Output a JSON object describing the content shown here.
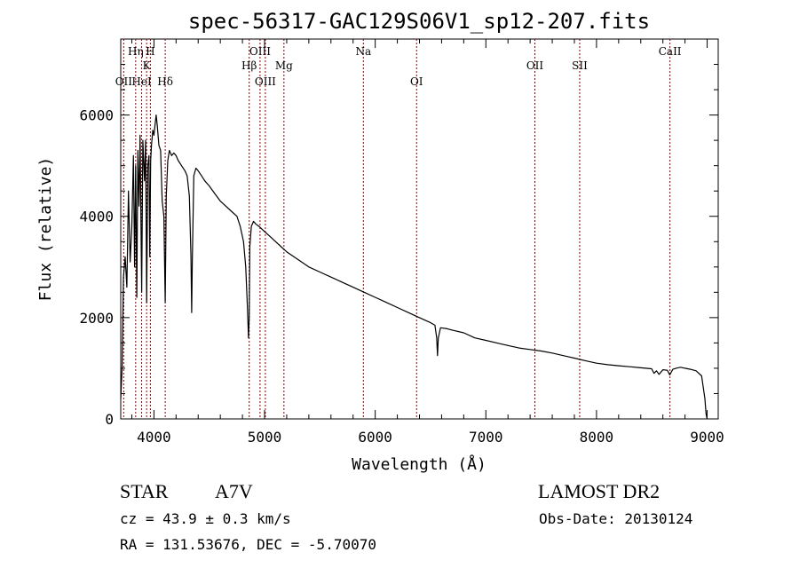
{
  "chart_data": {
    "type": "line",
    "title": "spec-56317-GAC129S06V1_sp12-207.fits",
    "xlabel": "Wavelength (Å)",
    "ylabel": "Flux (relative)",
    "xlim": [
      3700,
      9100
    ],
    "ylim": [
      0,
      7500
    ],
    "x_ticks": [
      4000,
      5000,
      6000,
      7000,
      8000,
      9000
    ],
    "x_tick_labels": [
      "4000",
      "5000",
      "6000",
      "7000",
      "8000",
      "9000"
    ],
    "y_ticks": [
      0,
      2000,
      4000,
      6000
    ],
    "y_tick_labels": [
      "0",
      "2000",
      "4000",
      "6000"
    ],
    "grid": false,
    "legend": "none",
    "line_color": "#000000",
    "marker_color": "#8b0000",
    "series": [
      {
        "x": [
          3700,
          3712,
          3725,
          3740,
          3755,
          3770,
          3785,
          3800,
          3815,
          3825,
          3835,
          3845,
          3855,
          3865,
          3875,
          3889,
          3900,
          3915,
          3925,
          3934,
          3945,
          3955,
          3962,
          3970,
          3978,
          3990,
          4000,
          4010,
          4020,
          4030,
          4045,
          4060,
          4075,
          4090,
          4102,
          4112,
          4125,
          4140,
          4160,
          4180,
          4200,
          4220,
          4250,
          4280,
          4300,
          4320,
          4335,
          4341,
          4347,
          4360,
          4380,
          4400,
          4430,
          4460,
          4500,
          4550,
          4600,
          4650,
          4700,
          4750,
          4780,
          4810,
          4830,
          4845,
          4855,
          4861,
          4867,
          4880,
          4900,
          4920,
          4950,
          5000,
          5050,
          5100,
          5150,
          5200,
          5300,
          5400,
          5500,
          5600,
          5700,
          5800,
          5900,
          6000,
          6100,
          6200,
          6300,
          6400,
          6500,
          6540,
          6556,
          6563,
          6570,
          6590,
          6650,
          6700,
          6800,
          6900,
          7000,
          7100,
          7200,
          7300,
          7400,
          7500,
          7600,
          7700,
          7800,
          7900,
          8000,
          8100,
          8200,
          8300,
          8400,
          8498,
          8520,
          8542,
          8565,
          8600,
          8640,
          8662,
          8690,
          8720,
          8760,
          8800,
          8850,
          8900,
          8950,
          8980,
          8990,
          9000
        ],
        "y": [
          400,
          1000,
          2800,
          3200,
          2600,
          4500,
          3100,
          3800,
          5200,
          3000,
          5000,
          2400,
          5300,
          4200,
          5600,
          2500,
          5500,
          4700,
          5500,
          2300,
          5000,
          5200,
          3200,
          5100,
          5400,
          5700,
          5600,
          5800,
          6000,
          5800,
          5400,
          5300,
          4300,
          4000,
          2300,
          4400,
          5100,
          5300,
          5200,
          5250,
          5200,
          5100,
          5000,
          4900,
          4800,
          4400,
          3200,
          2100,
          3100,
          4800,
          4950,
          4900,
          4800,
          4700,
          4600,
          4450,
          4300,
          4200,
          4100,
          4000,
          3800,
          3500,
          3000,
          2200,
          1600,
          2000,
          3400,
          3800,
          3900,
          3850,
          3800,
          3700,
          3600,
          3500,
          3400,
          3300,
          3150,
          3000,
          2900,
          2800,
          2700,
          2600,
          2500,
          2400,
          2300,
          2200,
          2100,
          2000,
          1900,
          1850,
          1600,
          1250,
          1600,
          1800,
          1780,
          1750,
          1700,
          1600,
          1550,
          1500,
          1450,
          1400,
          1370,
          1340,
          1300,
          1250,
          1200,
          1150,
          1100,
          1070,
          1050,
          1030,
          1010,
          990,
          900,
          950,
          880,
          970,
          960,
          870,
          980,
          1000,
          1020,
          1000,
          980,
          950,
          850,
          400,
          100,
          0
        ]
      }
    ],
    "line_markers": [
      {
        "label": "OII",
        "wavelength": 3727,
        "row": 3
      },
      {
        "label": "Hη",
        "wavelength": 3835,
        "row": 1
      },
      {
        "label": "HeI",
        "wavelength": 3889,
        "row": 3
      },
      {
        "label": "K",
        "wavelength": 3934,
        "row": 2
      },
      {
        "label": "H",
        "wavelength": 3968,
        "row": 1
      },
      {
        "label": "Hδ",
        "wavelength": 4102,
        "row": 3
      },
      {
        "label": "Hβ",
        "wavelength": 4861,
        "row": 2
      },
      {
        "label": "OIII",
        "wavelength": 4959,
        "row": 1
      },
      {
        "label": "OIII",
        "wavelength": 5007,
        "row": 3
      },
      {
        "label": "Mg",
        "wavelength": 5175,
        "row": 2
      },
      {
        "label": "Na",
        "wavelength": 5893,
        "row": 1
      },
      {
        "label": "OI",
        "wavelength": 6374,
        "row": 3
      },
      {
        "label": "OII",
        "wavelength": 7443,
        "row": 2
      },
      {
        "label": "SII",
        "wavelength": 7848,
        "row": 2
      },
      {
        "label": "CaII",
        "wavelength": 8664,
        "row": 1
      }
    ]
  },
  "info": {
    "object_class": "STAR",
    "subclass": "A7V",
    "survey": "LAMOST DR2",
    "redshift_line": "cz = 43.9 ± 0.3 km/s",
    "obs_date": "Obs-Date: 20130124",
    "coords": "RA = 131.53676, DEC =  -5.70070"
  }
}
